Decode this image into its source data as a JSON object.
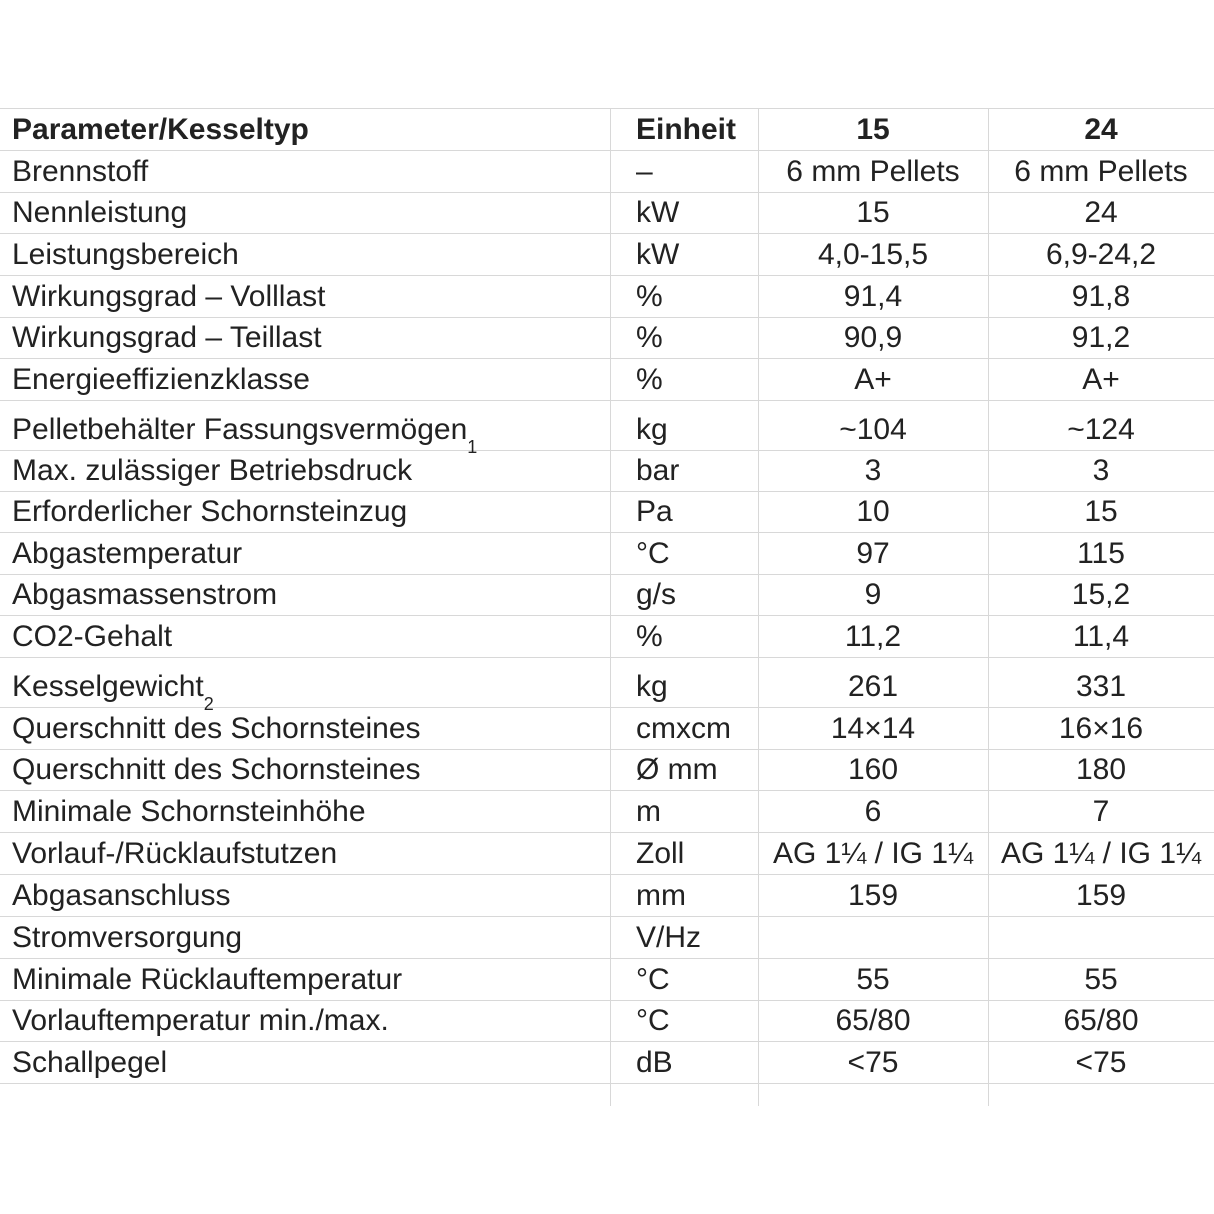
{
  "table": {
    "header": [
      "Parameter/Kesseltyp",
      "Einheit",
      "15",
      "24"
    ],
    "rows": [
      [
        "Brennstoff",
        "–",
        "6 mm Pellets",
        "6 mm Pellets"
      ],
      [
        "Nennleistung",
        "kW",
        "15",
        "24"
      ],
      [
        "Leistungsbereich",
        "kW",
        "4,0-15,5",
        "6,9-24,2"
      ],
      [
        "Wirkungsgrad – Volllast",
        "%",
        "91,4",
        "91,8"
      ],
      [
        "Wirkungsgrad – Teillast",
        "%",
        "90,9",
        "91,2"
      ],
      [
        "Energieeffizienzklasse",
        "%",
        "A+",
        "A+"
      ],
      [
        {
          "text": "Pelletbehälter Fassungsvermögen",
          "sup": "1"
        },
        "kg",
        "~104",
        "~124"
      ],
      [
        "Max. zulässiger Betriebsdruck",
        "bar",
        "3",
        "3"
      ],
      [
        "Erforderlicher Schornsteinzug",
        "Pa",
        "10",
        "15"
      ],
      [
        "Abgastemperatur",
        "°C",
        "97",
        "115"
      ],
      [
        "Abgasmassenstrom",
        "g/s",
        "9",
        "15,2"
      ],
      [
        "CO2-Gehalt",
        "%",
        "11,2",
        "11,4"
      ],
      [
        {
          "text": "Kesselgewicht",
          "sup": "2"
        },
        "kg",
        "261",
        "331"
      ],
      [
        "Querschnitt des Schornsteines",
        "cmxcm",
        "14×14",
        "16×16"
      ],
      [
        "Querschnitt des Schornsteines",
        "Ø mm",
        "160",
        "180"
      ],
      [
        "Minimale Schornsteinhöhe",
        "m",
        "6",
        "7"
      ],
      [
        "Vorlauf-/Rücklaufstutzen",
        "Zoll",
        "AG 1¼ / IG 1¼",
        "AG 1¼ / IG 1¼"
      ],
      [
        "Abgasanschluss",
        "mm",
        "159",
        "159"
      ],
      [
        "Stromversorgung",
        "V/Hz"
      ],
      [
        "Minimale Rücklauftemperatur",
        "°C",
        "55",
        "55"
      ],
      [
        "Vorlauftemperatur min./max.",
        "°C",
        "65/80",
        "65/80"
      ],
      [
        "Schallpegel",
        "dB",
        "<75",
        "<75"
      ]
    ]
  }
}
